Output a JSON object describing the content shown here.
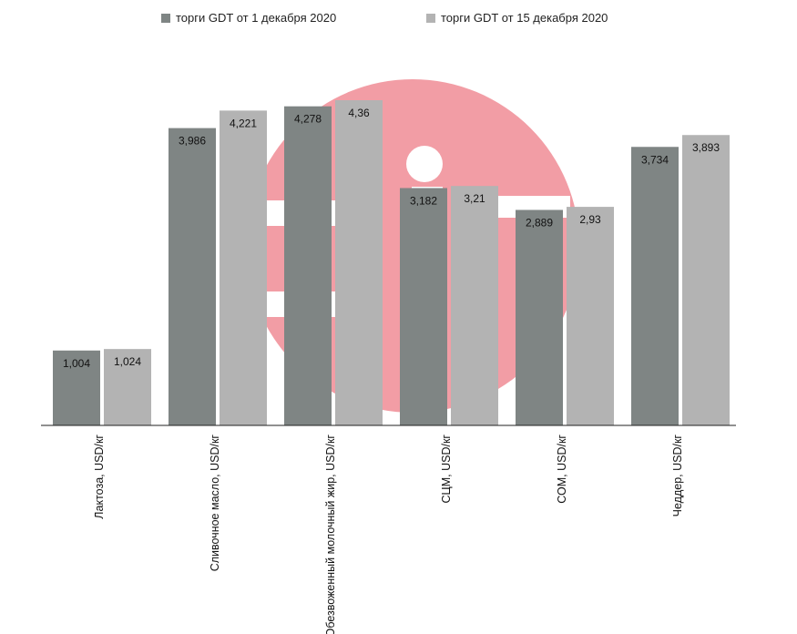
{
  "chart_data": {
    "type": "bar",
    "categories": [
      "Лактоза,  USD/кг",
      "Сливочное масло, USD/кг",
      "Обезвоженный молочный жир, USD/кг",
      "СЦМ, USD/кг",
      "СОМ, USD/кг",
      "Чеддер, USD/кг"
    ],
    "series": [
      {
        "name": "торги GDT от 1 декабря 2020",
        "values": [
          1.004,
          3.986,
          4.278,
          3.182,
          2.889,
          3.734
        ],
        "labels": [
          "1,004",
          "3,986",
          "4,278",
          "3,182",
          "2,889",
          "3,734"
        ],
        "color": "#7f8584"
      },
      {
        "name": "торги GDT от 15 декабря 2020",
        "values": [
          1.024,
          4.221,
          4.36,
          3.21,
          2.93,
          3.893
        ],
        "labels": [
          "1,024",
          "4,221",
          "4,36",
          "3,21",
          "2,93",
          "3,893"
        ],
        "color": "#b3b3b3"
      }
    ],
    "ylim": [
      0,
      4.4
    ],
    "legend": "top",
    "grid": false,
    "watermark_color": "#f29da5"
  }
}
